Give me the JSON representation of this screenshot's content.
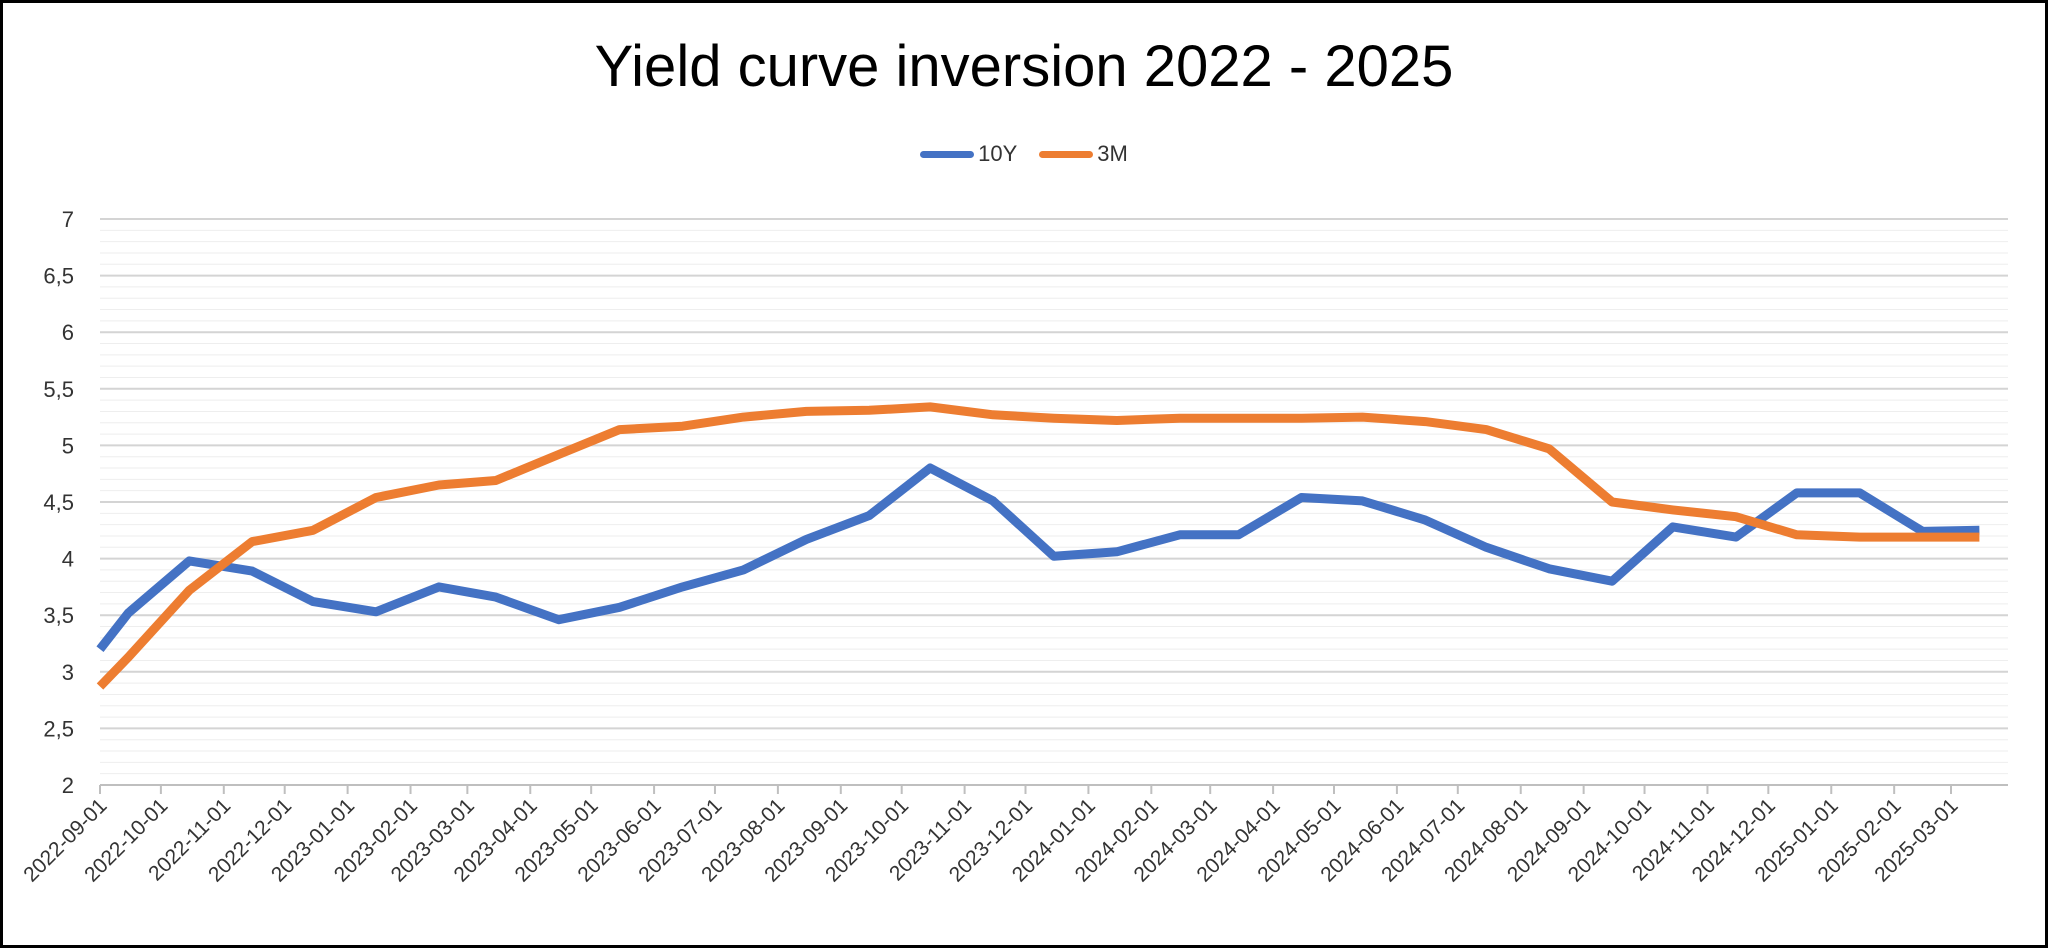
{
  "chart_data": {
    "type": "line",
    "title": "Yield curve inversion 2022 - 2025",
    "xlabel": "",
    "ylabel": "",
    "ylim": [
      2,
      7
    ],
    "yticks": [
      "2",
      "2,5",
      "3",
      "3,5",
      "4",
      "4,5",
      "5",
      "5,5",
      "6",
      "6,5",
      "7"
    ],
    "yticks_values": [
      2,
      2.5,
      3,
      3.5,
      4,
      4.5,
      5,
      5.5,
      6,
      6.5,
      7
    ],
    "categories": [
      "2022-09-01",
      "2022-10-01",
      "2022-11-01",
      "2022-12-01",
      "2023-01-01",
      "2023-02-01",
      "2023-03-01",
      "2023-04-01",
      "2023-05-01",
      "2023-06-01",
      "2023-07-01",
      "2023-08-01",
      "2023-09-01",
      "2023-10-01",
      "2023-11-01",
      "2023-12-01",
      "2024-01-01",
      "2024-02-01",
      "2024-03-01",
      "2024-04-01",
      "2024-05-01",
      "2024-06-01",
      "2024-07-01",
      "2024-08-01",
      "2024-09-01",
      "2024-10-01",
      "2024-11-01",
      "2024-12-01",
      "2025-01-01",
      "2025-02-01",
      "2025-03-01"
    ],
    "x": [
      "2022-09-01",
      "2022-09-15",
      "2022-10-15",
      "2022-11-15",
      "2022-12-15",
      "2023-01-15",
      "2023-02-15",
      "2023-03-15",
      "2023-04-15",
      "2023-05-15",
      "2023-06-15",
      "2023-07-15",
      "2023-08-15",
      "2023-09-15",
      "2023-10-15",
      "2023-11-15",
      "2023-12-15",
      "2024-01-15",
      "2024-02-15",
      "2024-03-15",
      "2024-04-15",
      "2024-05-15",
      "2024-06-15",
      "2024-07-15",
      "2024-08-15",
      "2024-09-15",
      "2024-10-15",
      "2024-11-15",
      "2024-12-15",
      "2025-01-15",
      "2025-02-15",
      "2025-03-15"
    ],
    "series": [
      {
        "name": "10Y",
        "color": "#4472C4",
        "values": [
          3.2,
          3.52,
          3.98,
          3.89,
          3.62,
          3.53,
          3.75,
          3.66,
          3.46,
          3.57,
          3.75,
          3.9,
          4.17,
          4.38,
          4.8,
          4.51,
          4.02,
          4.06,
          4.21,
          4.21,
          4.54,
          4.51,
          4.34,
          4.1,
          3.91,
          3.8,
          4.28,
          4.19,
          4.58,
          4.58,
          4.24,
          4.25
        ]
      },
      {
        "name": "3M",
        "color": "#ED7D31",
        "values": [
          2.87,
          3.13,
          3.72,
          4.15,
          4.25,
          4.54,
          4.65,
          4.69,
          4.92,
          5.14,
          5.17,
          5.25,
          5.3,
          5.31,
          5.34,
          5.27,
          5.24,
          5.22,
          5.24,
          5.24,
          5.24,
          5.25,
          5.21,
          5.14,
          4.97,
          4.5,
          4.43,
          4.37,
          4.21,
          4.19,
          4.19,
          4.19
        ]
      }
    ],
    "grid": true,
    "legend_position": "top"
  }
}
